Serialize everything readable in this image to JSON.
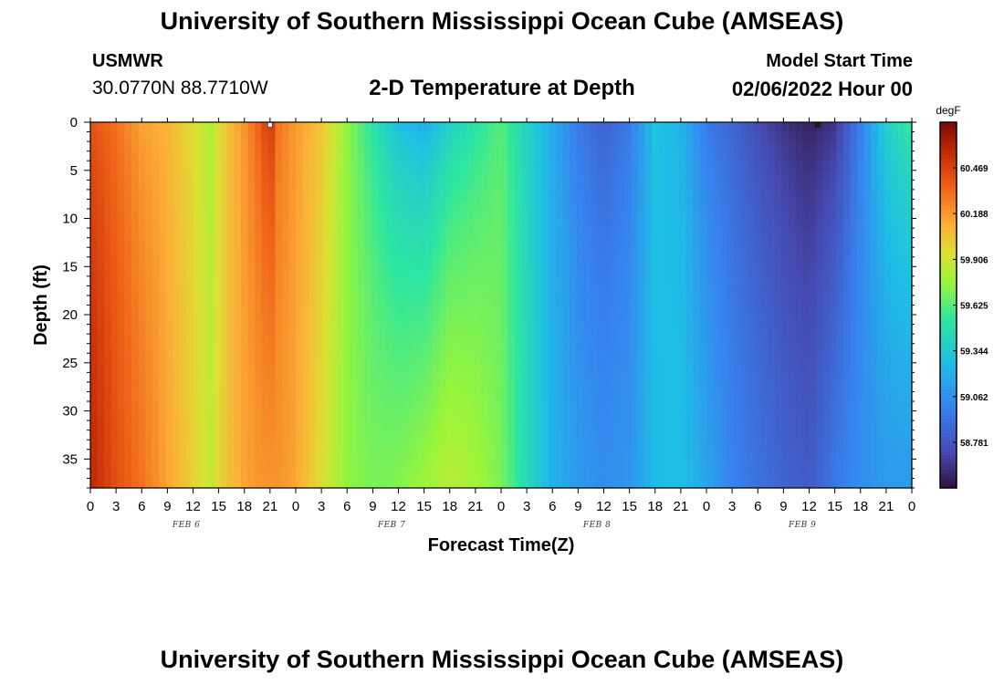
{
  "header": {
    "title": "University of Southern Mississippi Ocean Cube (AMSEAS)",
    "station": "USMWR",
    "coords": "30.0770N  88.7710W",
    "plot_title": "2-D Temperature at Depth",
    "model_start_label": "Model Start Time",
    "model_start_value": "02/06/2022 Hour 00"
  },
  "footer": {
    "title": "University of Southern Mississippi Ocean Cube (AMSEAS)"
  },
  "chart_data": {
    "type": "heatmap",
    "title": "2-D Temperature at Depth",
    "xlabel": "Forecast Time(Z)",
    "ylabel": "Depth (ft)",
    "x_range_hours": [
      0,
      96
    ],
    "x_tick_labels": [
      "0",
      "3",
      "6",
      "9",
      "12",
      "15",
      "18",
      "21",
      "0",
      "3",
      "6",
      "9",
      "12",
      "15",
      "18",
      "21",
      "0",
      "3",
      "6",
      "9",
      "12",
      "15",
      "18",
      "21",
      "0",
      "3",
      "6",
      "9",
      "12",
      "15",
      "18",
      "21",
      "0"
    ],
    "date_labels": [
      {
        "label": "FEB 6",
        "hour": 11
      },
      {
        "label": "FEB 7",
        "hour": 35
      },
      {
        "label": "FEB 8",
        "hour": 59
      },
      {
        "label": "FEB 9",
        "hour": 83
      }
    ],
    "y_range": [
      0,
      38
    ],
    "y_ticks": [
      0,
      5,
      10,
      15,
      20,
      25,
      30,
      35
    ],
    "colorbar": {
      "unit": "degF",
      "min": 58.5,
      "max": 60.75,
      "labels": [
        "60.469",
        "60.188",
        "59.906",
        "59.625",
        "59.344",
        "59.062",
        "58.781"
      ]
    },
    "temperature_profile": {
      "columns_per_hour": 1,
      "surface_hours": [
        0,
        3,
        6,
        9,
        12,
        14,
        16,
        18,
        20,
        21,
        22,
        24,
        27,
        30,
        33,
        36,
        39,
        42,
        45,
        48,
        51,
        54,
        57,
        60,
        63,
        66,
        69,
        72,
        75,
        78,
        81,
        84,
        87,
        90,
        93,
        96
      ],
      "surface_values": [
        60.4,
        60.3,
        60.15,
        60.1,
        59.95,
        59.82,
        60.05,
        60.2,
        60.4,
        60.55,
        60.3,
        60.18,
        60.05,
        59.75,
        59.5,
        59.25,
        59.15,
        59.35,
        59.48,
        59.62,
        59.4,
        59.18,
        58.95,
        58.82,
        58.95,
        59.3,
        59.22,
        58.95,
        58.85,
        58.72,
        58.62,
        58.55,
        58.62,
        58.98,
        59.4,
        59.6
      ],
      "bottom_hours": [
        0,
        3,
        6,
        9,
        12,
        14,
        16,
        18,
        20,
        21,
        22,
        24,
        27,
        30,
        33,
        36,
        39,
        42,
        45,
        48,
        51,
        54,
        57,
        60,
        63,
        66,
        69,
        72,
        75,
        78,
        81,
        84,
        87,
        90,
        93,
        96
      ],
      "bottom_values": [
        60.58,
        60.42,
        60.3,
        60.15,
        60.0,
        59.88,
        60.05,
        60.15,
        60.2,
        60.2,
        60.2,
        60.15,
        59.95,
        59.75,
        59.7,
        59.72,
        59.78,
        59.85,
        59.8,
        59.7,
        59.45,
        59.22,
        59.1,
        59.05,
        59.08,
        59.25,
        59.28,
        59.15,
        59.0,
        58.92,
        58.85,
        58.8,
        58.95,
        59.05,
        59.1,
        59.1
      ]
    },
    "markers": [
      {
        "hour": 21,
        "depth": 0,
        "color": "#ffffff"
      },
      {
        "hour": 85,
        "depth": 0,
        "color": "#222222"
      }
    ]
  }
}
